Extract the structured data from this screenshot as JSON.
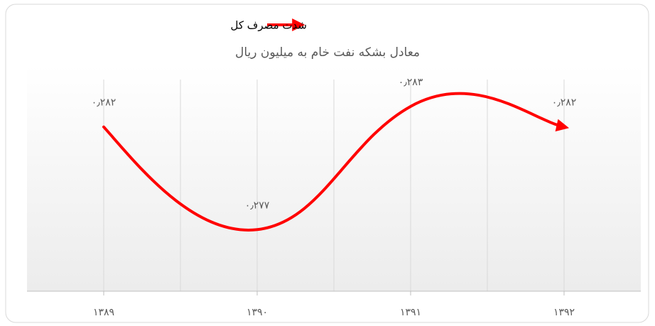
{
  "chart_data": {
    "type": "line",
    "legend": "شدت مصرف کل",
    "subtitle": "معادل بشکه نفت خام به میلیون ریال",
    "categories": [
      "۱۳۸۹",
      "۱۳۹۰",
      "۱۳۹۱",
      "۱۳۹۲"
    ],
    "values": [
      0.282,
      0.277,
      0.283,
      0.282
    ],
    "value_labels": [
      "۰٫۲۸۲",
      "۰٫۲۷۷",
      "۰٫۲۸۳",
      "۰٫۲۸۲"
    ],
    "color": "#ff0000",
    "ylim": [
      0.274,
      0.285
    ]
  }
}
